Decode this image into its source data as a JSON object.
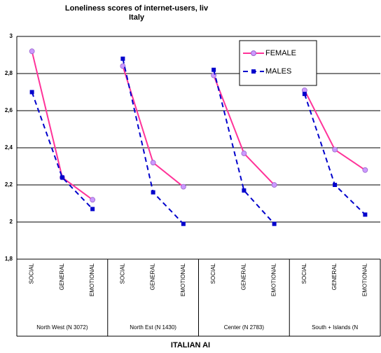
{
  "chart_data": {
    "type": "line",
    "title": [
      "Loneliness  scores of internet-users, liv",
      "Italy"
    ],
    "x_title": "ITALIAN AI",
    "categories": [
      "SOCIAL",
      "GENERAL",
      "EMOTIONAL",
      "SOCIAL",
      "GENERAL",
      "EMOTIONAL",
      "SOCIAL",
      "GENERAL",
      "EMOTIONAL",
      "SOCIAL",
      "GENERAL",
      "EMOTIONAL"
    ],
    "groups": [
      {
        "label": "North West (N 3072)",
        "size": 3
      },
      {
        "label": "North Est (N 1430)",
        "size": 3
      },
      {
        "label": "Center (N 2783)",
        "size": 3
      },
      {
        "label": "South + Islands (N",
        "size": 3
      }
    ],
    "series": [
      {
        "name": "FEMALE",
        "color": "#ff3399",
        "marker_color": "#cc99ff",
        "marker": "circle",
        "dash": false,
        "values": [
          2.92,
          2.24,
          2.12,
          2.84,
          2.32,
          2.19,
          2.79,
          2.37,
          2.2,
          2.71,
          2.39,
          2.28
        ]
      },
      {
        "name": "MALES",
        "color": "#0000cc",
        "marker_color": "#0000cc",
        "marker": "square",
        "dash": true,
        "values": [
          2.7,
          2.24,
          2.07,
          2.88,
          2.16,
          1.99,
          2.82,
          2.17,
          1.99,
          2.69,
          2.2,
          2.04
        ]
      }
    ],
    "ylim": [
      1.8,
      3
    ],
    "yticks": [
      {
        "value": 1.8,
        "label": "1,8"
      },
      2,
      {
        "value": 2.2,
        "label": "2,2"
      },
      {
        "value": 2.4,
        "label": "2,4"
      },
      {
        "value": 2.6,
        "label": "2,6"
      },
      {
        "value": 2.8,
        "label": "2,8"
      },
      3
    ],
    "grid": true
  }
}
